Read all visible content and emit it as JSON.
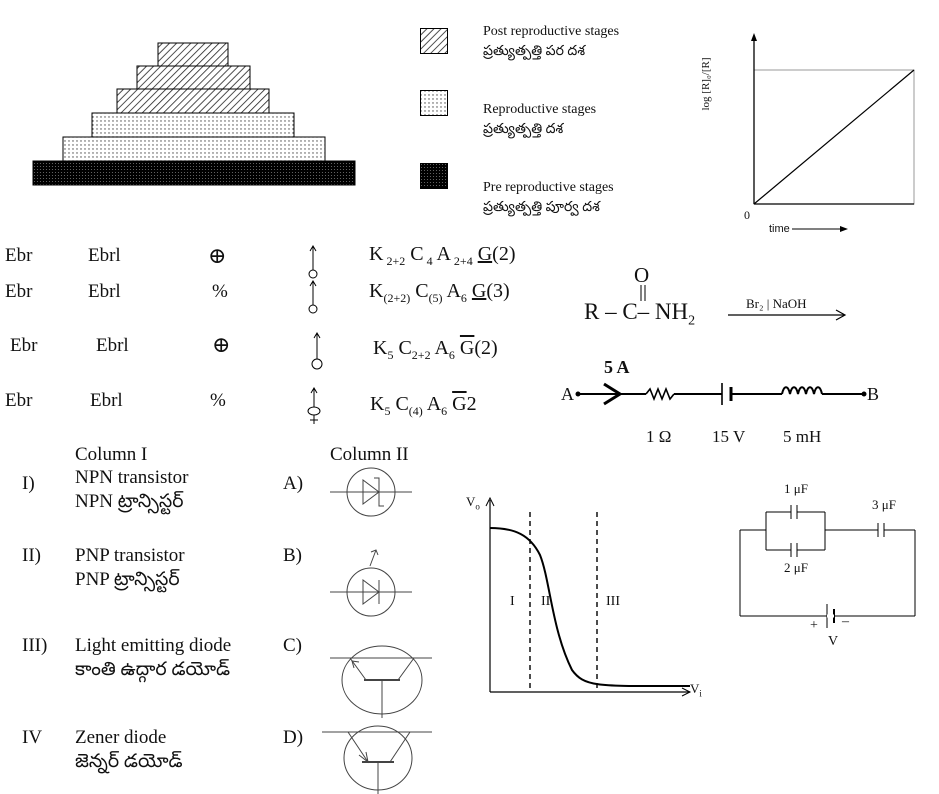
{
  "pyramid": {
    "legend": [
      {
        "label": "Post reproductive stages",
        "telugu": "ప్రత్యుత్పత్తి పర దశ",
        "pattern": "hatched"
      },
      {
        "label": "Reproductive stages",
        "telugu": "ప్రత్యుత్పత్తి దశ",
        "pattern": "dotted"
      },
      {
        "label": "Pre reproductive stages",
        "telugu": "ప్రత్యుత్పత్తి పూర్వ దశ",
        "pattern": "dark-dotted"
      }
    ]
  },
  "kinetics_graph": {
    "y_label": "log [R]₀/[R]",
    "x_label": "time",
    "origin": "0"
  },
  "floral_formulas": {
    "rows": [
      {
        "col1": "Ebr",
        "col2": "Ebrl",
        "symbol": "⊕",
        "formula": "K 2+2 C 4 A 2+4 G(2)"
      },
      {
        "col1": "Ebr",
        "col2": "Ebrl",
        "symbol": "%",
        "formula": "K(2+2) C(5) A6 G(3)"
      },
      {
        "col1": "Ebr",
        "col2": "Ebrl",
        "symbol": "⊕",
        "formula": "K5 C2+2 A6 G(2)"
      },
      {
        "col1": "Ebr",
        "col2": "Ebrl",
        "symbol": "%",
        "formula": "K5 C(4) A6 G2"
      }
    ]
  },
  "reaction": {
    "O": "O",
    "reactant_prefix": "R – C– NH",
    "reactant_sub": "2",
    "reagent": "Br₂ | NaOH"
  },
  "circuit_lr": {
    "current": "5 A",
    "node_a": "A",
    "node_b": "B",
    "resistor": "1 Ω",
    "battery": "15 V",
    "inductor": "5 mH"
  },
  "match_table": {
    "col1_header": "Column I",
    "col2_header": "Column II",
    "items": [
      {
        "num": "I)",
        "en": "NPN transistor",
        "te": "NPN ట్రాన్సిస్టర్",
        "letter": "A)"
      },
      {
        "num": "II)",
        "en": "PNP transistor",
        "te": "PNP ట్రాన్సిస్టర్",
        "letter": "B)"
      },
      {
        "num": "III)",
        "en": "Light emitting diode",
        "te": "కాంతి ఉద్గార డయోడ్",
        "letter": "C)"
      },
      {
        "num": "IV",
        "en": "Zener diode",
        "te": "జెన్నర్ డయోడ్",
        "letter": "D)"
      }
    ]
  },
  "transfer_curve": {
    "y_label": "V",
    "y_sub": "o",
    "x_label": "V",
    "x_sub": "i",
    "regions": [
      "I",
      "II",
      "III"
    ]
  },
  "capacitor_circuit": {
    "c1": "1 μF",
    "c2": "2 μF",
    "c3": "3 μF",
    "plus": "+",
    "minus": "–",
    "voltage": "V"
  }
}
